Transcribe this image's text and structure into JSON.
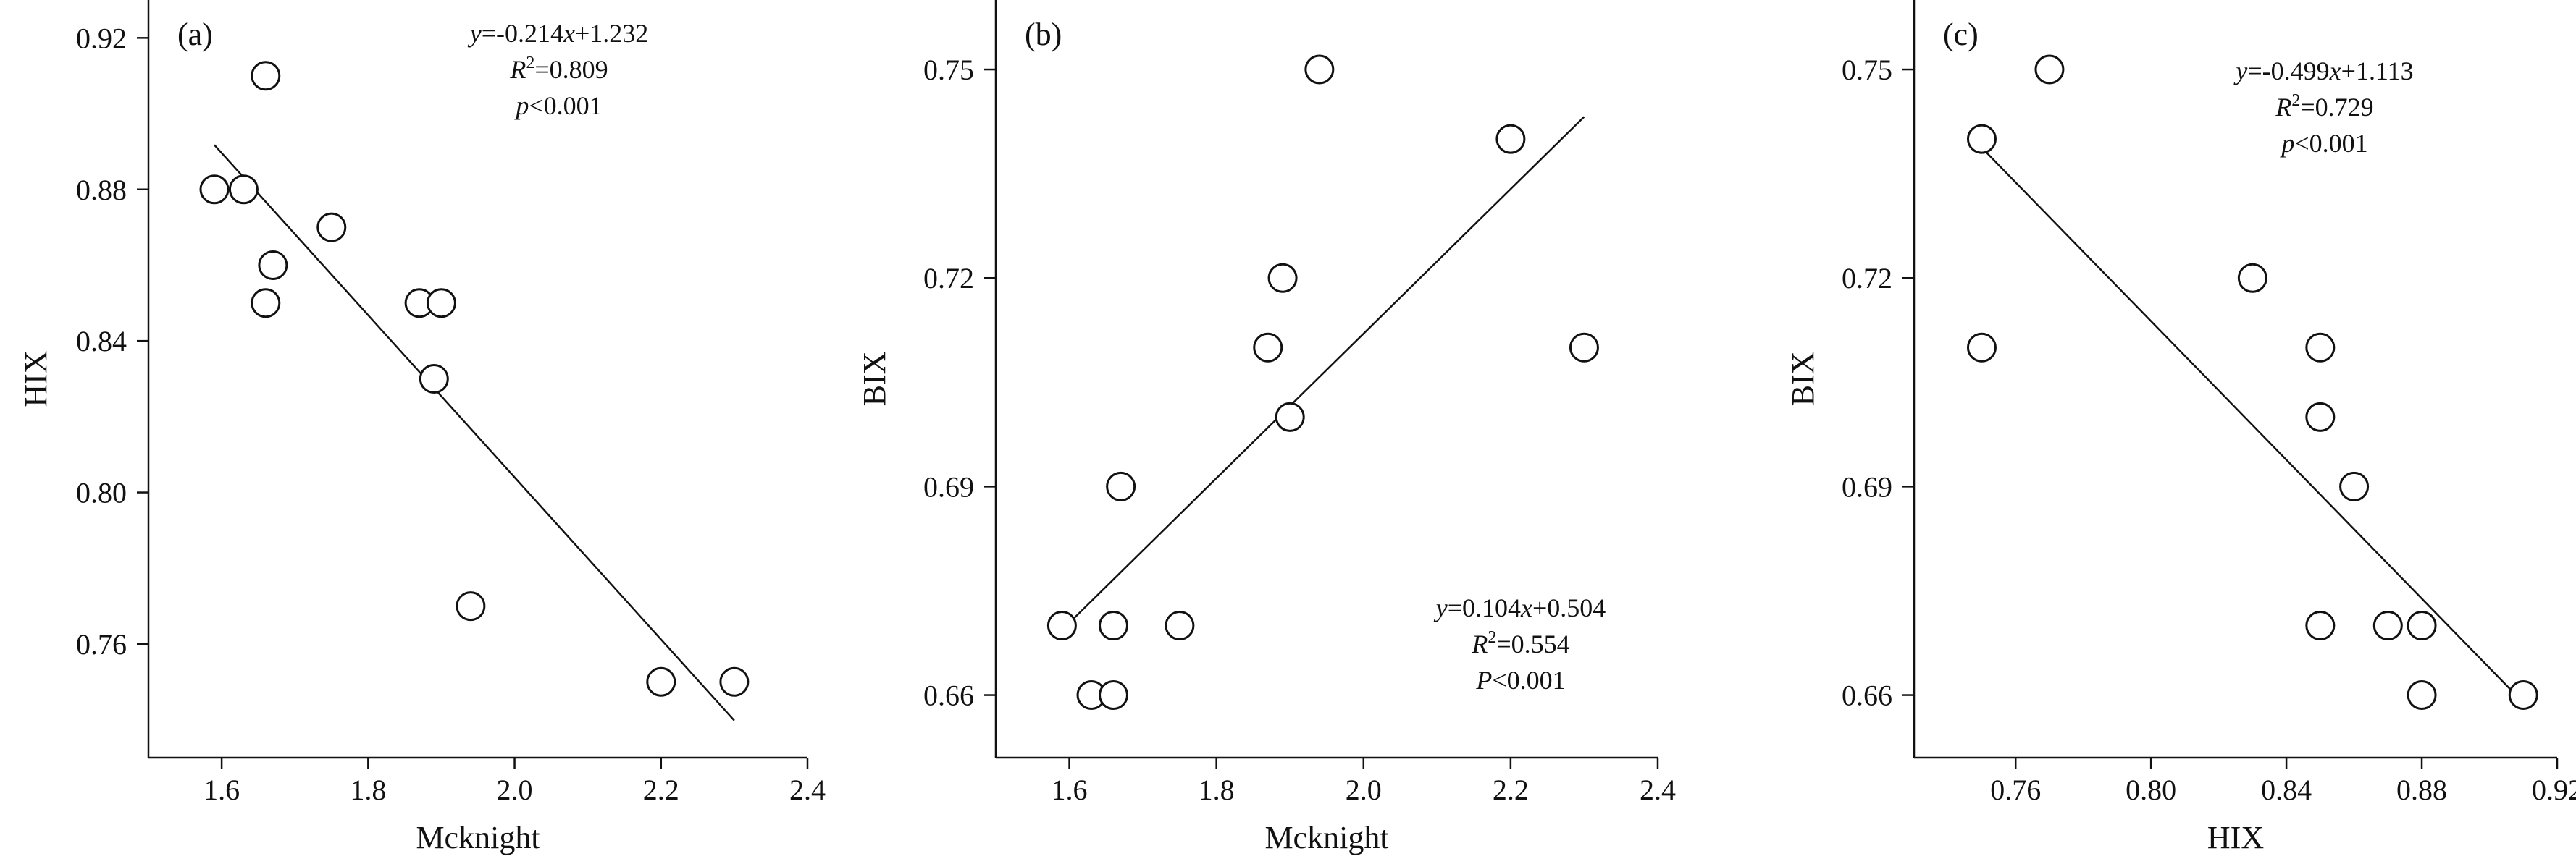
{
  "chart_data": [
    {
      "type": "scatter",
      "panel_label": "(a)",
      "xlabel": "Mcknight",
      "ylabel": "HIX",
      "xlim": [
        1.5,
        2.4
      ],
      "ylim": [
        0.73,
        0.93
      ],
      "xticks": [
        1.6,
        1.8,
        2.0,
        2.2,
        2.4
      ],
      "xtick_labels": [
        "1.6",
        "1.8",
        "2.0",
        "2.2",
        "2.4"
      ],
      "yticks": [
        0.76,
        0.8,
        0.84,
        0.88,
        0.92
      ],
      "ytick_labels": [
        "0.76",
        "0.80",
        "0.84",
        "0.88",
        "0.92"
      ],
      "points": [
        {
          "x": 1.59,
          "y": 0.88
        },
        {
          "x": 1.63,
          "y": 0.88
        },
        {
          "x": 1.66,
          "y": 0.91
        },
        {
          "x": 1.67,
          "y": 0.86
        },
        {
          "x": 1.66,
          "y": 0.85
        },
        {
          "x": 1.75,
          "y": 0.87
        },
        {
          "x": 1.87,
          "y": 0.85
        },
        {
          "x": 1.9,
          "y": 0.85
        },
        {
          "x": 1.89,
          "y": 0.83
        },
        {
          "x": 1.94,
          "y": 0.77
        },
        {
          "x": 2.2,
          "y": 0.75
        },
        {
          "x": 2.3,
          "y": 0.75
        }
      ],
      "fit": {
        "slope": -0.214,
        "intercept": 1.232,
        "x_range": [
          1.59,
          2.3
        ]
      },
      "annotation": {
        "lines": [
          {
            "italic": "y",
            "rest": "=-0.214",
            "italic2": "x",
            "rest2": "+1.232"
          },
          {
            "italic": "R",
            "sup": "2",
            "rest": "=0.809"
          },
          {
            "italic": "p",
            "rest": "<0.001"
          }
        ],
        "position": "top-center"
      }
    },
    {
      "type": "scatter",
      "panel_label": "(b)",
      "xlabel": "Mcknight",
      "ylabel": "BIX",
      "xlim": [
        1.5,
        2.4
      ],
      "ylim": [
        0.651,
        0.76
      ],
      "xticks": [
        1.6,
        1.8,
        2.0,
        2.2,
        2.4
      ],
      "xtick_labels": [
        "1.6",
        "1.8",
        "2.0",
        "2.2",
        "2.4"
      ],
      "yticks": [
        0.66,
        0.69,
        0.72,
        0.75
      ],
      "ytick_labels": [
        "0.66",
        "0.69",
        "0.72",
        "0.75"
      ],
      "points": [
        {
          "x": 1.59,
          "y": 0.67
        },
        {
          "x": 1.63,
          "y": 0.66
        },
        {
          "x": 1.66,
          "y": 0.66
        },
        {
          "x": 1.66,
          "y": 0.67
        },
        {
          "x": 1.67,
          "y": 0.69
        },
        {
          "x": 1.75,
          "y": 0.67
        },
        {
          "x": 1.87,
          "y": 0.71
        },
        {
          "x": 1.89,
          "y": 0.72
        },
        {
          "x": 1.9,
          "y": 0.7
        },
        {
          "x": 1.94,
          "y": 0.75
        },
        {
          "x": 2.2,
          "y": 0.74
        },
        {
          "x": 2.3,
          "y": 0.71
        }
      ],
      "fit": {
        "slope": 0.104,
        "intercept": 0.504,
        "x_range": [
          1.59,
          2.3
        ]
      },
      "annotation": {
        "lines": [
          {
            "italic": "y",
            "rest": "=0.104",
            "italic2": "x",
            "rest2": "+0.504"
          },
          {
            "italic": "R",
            "sup": "2",
            "rest": "=0.554"
          },
          {
            "italic": "P",
            "rest": "<0.001"
          }
        ],
        "position": "bottom-right"
      }
    },
    {
      "type": "scatter",
      "panel_label": "(c)",
      "xlabel": "HIX",
      "ylabel": "BIX",
      "xlim": [
        0.73,
        0.92
      ],
      "ylim": [
        0.651,
        0.76
      ],
      "xticks": [
        0.76,
        0.8,
        0.84,
        0.88,
        0.92
      ],
      "xtick_labels": [
        "0.76",
        "0.80",
        "0.84",
        "0.88",
        "0.92"
      ],
      "yticks": [
        0.66,
        0.69,
        0.72,
        0.75
      ],
      "ytick_labels": [
        "0.66",
        "0.69",
        "0.72",
        "0.75"
      ],
      "points": [
        {
          "x": 0.75,
          "y": 0.74
        },
        {
          "x": 0.75,
          "y": 0.71
        },
        {
          "x": 0.77,
          "y": 0.75
        },
        {
          "x": 0.83,
          "y": 0.72
        },
        {
          "x": 0.85,
          "y": 0.71
        },
        {
          "x": 0.85,
          "y": 0.7
        },
        {
          "x": 0.85,
          "y": 0.67
        },
        {
          "x": 0.86,
          "y": 0.69
        },
        {
          "x": 0.87,
          "y": 0.67
        },
        {
          "x": 0.88,
          "y": 0.67
        },
        {
          "x": 0.88,
          "y": 0.66
        },
        {
          "x": 0.91,
          "y": 0.66
        }
      ],
      "fit": {
        "slope": -0.499,
        "intercept": 1.113,
        "x_range": [
          0.75,
          0.91
        ]
      },
      "annotation": {
        "lines": [
          {
            "italic": "y",
            "rest": "=-0.499",
            "italic2": "x",
            "rest2": "+1.113"
          },
          {
            "italic": "R",
            "sup": "2",
            "rest": "=0.729"
          },
          {
            "italic": "p",
            "rest": "<0.001"
          }
        ],
        "position": "top-center"
      }
    }
  ]
}
